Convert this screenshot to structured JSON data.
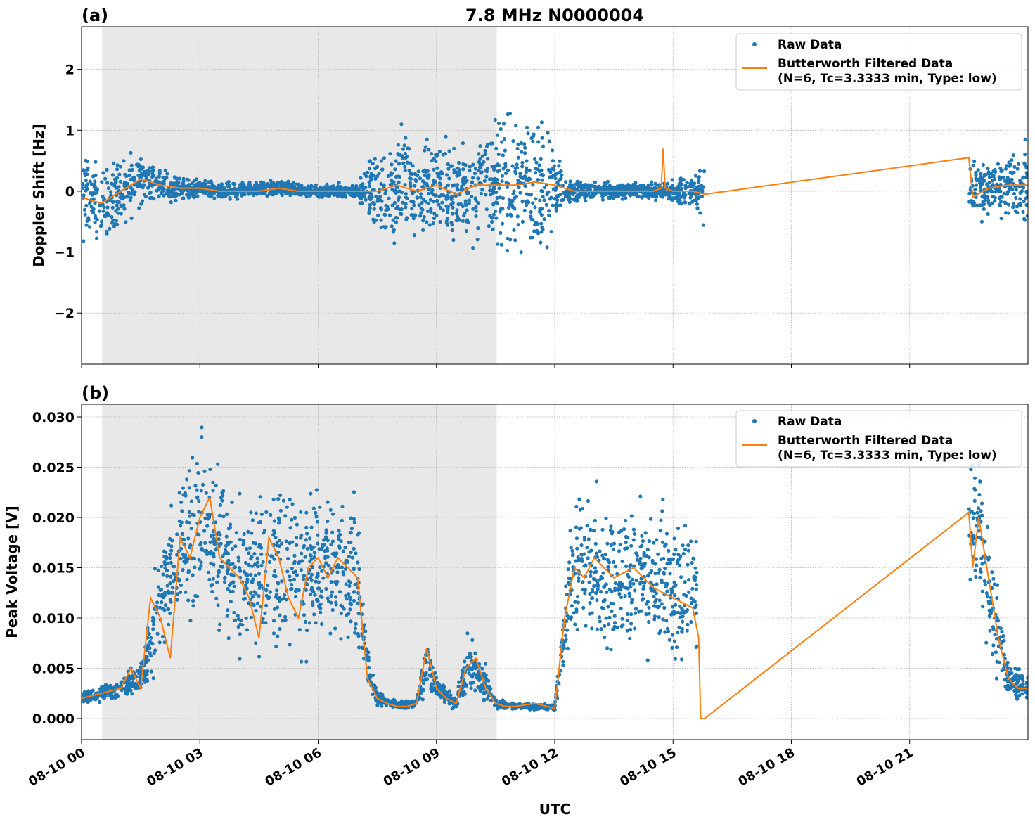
{
  "chart_data": [
    {
      "type": "scatter",
      "panel_label": "(a)",
      "title": "7.8 MHz N0000004",
      "xlabel": "",
      "ylabel": "Doppler Shift [Hz]",
      "xlim_hours": [
        0,
        24
      ],
      "ylim": [
        -2.84,
        2.7
      ],
      "yticks": [
        -2,
        -1,
        0,
        1,
        2
      ],
      "ytick_labels": [
        "−2",
        "−1",
        "0",
        "1",
        "2"
      ],
      "xticks_hours": [
        0,
        3,
        6,
        9,
        12,
        15,
        18,
        21
      ],
      "xtick_labels": [
        "08-10 00",
        "08-10 03",
        "08-10 06",
        "08-10 09",
        "08-10 12",
        "08-10 15",
        "08-10 18",
        "08-10 21"
      ],
      "show_xtick_labels": false,
      "grid": true,
      "night_shading_hours": [
        0.52,
        10.53
      ],
      "legend": {
        "placement": "top-right",
        "entries": [
          "Raw Data",
          "Butterworth Filtered Data",
          "(N=6, Tc=3.3333 min, Type: low)"
        ]
      },
      "colors": {
        "raw": "#1f77b4",
        "filtered": "#ff7f0e",
        "shade": "#e8e8e8"
      },
      "filtered_series": {
        "x": [
          0,
          0.5,
          1,
          1.5,
          2,
          2.5,
          3,
          3.5,
          4,
          4.5,
          5,
          5.5,
          6,
          6.5,
          7,
          7.5,
          8,
          8.5,
          9,
          9.5,
          10,
          10.5,
          11,
          11.5,
          12,
          12.25,
          12.5,
          13,
          13.5,
          14,
          14.5,
          14.7,
          14.75,
          14.8,
          15,
          15.5,
          15.8,
          22.5,
          22.6,
          23,
          23.5,
          24
        ],
        "y": [
          -0.1,
          -0.2,
          0.0,
          0.2,
          0.1,
          0.05,
          0.05,
          0.0,
          0.0,
          0.0,
          0.05,
          0.0,
          0.0,
          0.0,
          0.0,
          0.0,
          0.1,
          0.0,
          0.1,
          -0.05,
          0.1,
          0.1,
          0.1,
          0.15,
          0.1,
          0.05,
          0.0,
          0.0,
          0.0,
          0.0,
          0.0,
          0.05,
          0.7,
          0.05,
          0.0,
          0.0,
          -0.05,
          0.55,
          -0.1,
          0.05,
          0.1,
          0.1
        ]
      },
      "raw_envelope": {
        "segments": [
          {
            "x": [
              0,
              0.5,
              1,
              1.5,
              2,
              2.5,
              3,
              3.5,
              4,
              5,
              6,
              7,
              7.5,
              8,
              8.5,
              9,
              9.5,
              10,
              10.5,
              11,
              11.5,
              12,
              12.25,
              12.5,
              13,
              14,
              14.5,
              15,
              15.5,
              15.8
            ],
            "center": [
              -0.1,
              -0.2,
              0.0,
              0.2,
              0.1,
              0.05,
              0.05,
              0.0,
              0.0,
              0.05,
              0.0,
              0.0,
              0.0,
              0.1,
              0.0,
              0.1,
              -0.05,
              0.1,
              0.1,
              0.1,
              0.15,
              0.1,
              0.05,
              0.0,
              0.0,
              0.0,
              0.0,
              0.0,
              0.0,
              -0.05
            ],
            "halfwidth": [
              0.8,
              0.7,
              0.6,
              0.5,
              0.3,
              0.2,
              0.15,
              0.15,
              0.15,
              0.15,
              0.12,
              0.15,
              0.8,
              1.3,
              0.8,
              1.0,
              0.8,
              1.0,
              1.1,
              1.3,
              1.3,
              0.8,
              0.3,
              0.2,
              0.15,
              0.15,
              0.15,
              0.2,
              0.3,
              0.8
            ]
          },
          {
            "x": [
              22.5,
              23,
              23.5,
              24
            ],
            "center": [
              0.05,
              0.05,
              0.1,
              0.1
            ],
            "halfwidth": [
              0.6,
              0.5,
              0.6,
              0.8
            ]
          }
        ]
      }
    },
    {
      "type": "scatter",
      "panel_label": "(b)",
      "title": "",
      "xlabel": "UTC",
      "ylabel": "Peak Voltage [V]",
      "xlim_hours": [
        0,
        24
      ],
      "ylim": [
        -0.0021,
        0.03126
      ],
      "yticks": [
        0,
        0.005,
        0.01,
        0.015,
        0.02,
        0.025,
        0.03
      ],
      "ytick_labels": [
        "0.000",
        "0.005",
        "0.010",
        "0.015",
        "0.020",
        "0.025",
        "0.030"
      ],
      "xticks_hours": [
        0,
        3,
        6,
        9,
        12,
        15,
        18,
        21
      ],
      "xtick_labels": [
        "08-10 00",
        "08-10 03",
        "08-10 06",
        "08-10 09",
        "08-10 12",
        "08-10 15",
        "08-10 18",
        "08-10 21"
      ],
      "show_xtick_labels": true,
      "grid": true,
      "night_shading_hours": [
        0.52,
        10.53
      ],
      "legend": {
        "placement": "top-right",
        "entries": [
          "Raw Data",
          "Butterworth Filtered Data",
          "(N=6, Tc=3.3333 min, Type: low)"
        ]
      },
      "colors": {
        "raw": "#1f77b4",
        "filtered": "#ff7f0e",
        "shade": "#e8e8e8"
      },
      "filtered_series": {
        "x": [
          0,
          0.5,
          1,
          1.25,
          1.5,
          1.75,
          2,
          2.25,
          2.5,
          2.75,
          3,
          3.25,
          3.5,
          3.75,
          4,
          4.25,
          4.5,
          4.75,
          5,
          5.25,
          5.5,
          5.75,
          6,
          6.25,
          6.5,
          6.75,
          7,
          7.25,
          7.5,
          7.75,
          8,
          8.25,
          8.5,
          8.75,
          9,
          9.25,
          9.5,
          9.75,
          10,
          10.25,
          10.5,
          10.75,
          11,
          11.5,
          12,
          12.25,
          12.5,
          12.75,
          13,
          13.5,
          14,
          14.5,
          15,
          15.5,
          15.65,
          15.7,
          15.8,
          22.5,
          22.6,
          22.75,
          23,
          23.25,
          23.5,
          23.75,
          24
        ],
        "y": [
          0.002,
          0.0025,
          0.003,
          0.005,
          0.003,
          0.012,
          0.01,
          0.006,
          0.018,
          0.016,
          0.02,
          0.022,
          0.016,
          0.015,
          0.014,
          0.012,
          0.008,
          0.018,
          0.016,
          0.012,
          0.01,
          0.015,
          0.016,
          0.014,
          0.016,
          0.015,
          0.014,
          0.004,
          0.002,
          0.0015,
          0.0012,
          0.0012,
          0.0015,
          0.007,
          0.003,
          0.002,
          0.0015,
          0.005,
          0.006,
          0.003,
          0.0015,
          0.0012,
          0.0012,
          0.0015,
          0.001,
          0.01,
          0.015,
          0.014,
          0.016,
          0.014,
          0.015,
          0.013,
          0.012,
          0.011,
          0.008,
          0.0,
          0.0,
          0.0205,
          0.015,
          0.02,
          0.014,
          0.008,
          0.004,
          0.003,
          0.003
        ]
      },
      "raw_envelope": {
        "segments": [
          {
            "x": [
              0,
              1,
              1.5,
              2,
              2.5,
              3,
              4,
              5,
              6,
              7,
              7.25,
              7.5,
              8,
              8.5,
              8.75,
              9,
              9.5,
              9.75,
              10,
              10.5,
              11,
              12,
              12.25,
              12.5,
              13,
              14,
              15,
              15.6
            ],
            "center": [
              0.002,
              0.003,
              0.004,
              0.011,
              0.017,
              0.02,
              0.014,
              0.015,
              0.015,
              0.014,
              0.005,
              0.002,
              0.0013,
              0.0015,
              0.006,
              0.003,
              0.0015,
              0.005,
              0.005,
              0.0015,
              0.0012,
              0.0012,
              0.009,
              0.015,
              0.015,
              0.014,
              0.013,
              0.012
            ],
            "halfwidth": [
              0.0007,
              0.001,
              0.002,
              0.007,
              0.008,
              0.009,
              0.008,
              0.009,
              0.008,
              0.008,
              0.002,
              0.0008,
              0.0004,
              0.0006,
              0.0035,
              0.0015,
              0.0008,
              0.003,
              0.003,
              0.0006,
              0.0003,
              0.0004,
              0.004,
              0.008,
              0.008,
              0.008,
              0.008,
              0.007
            ]
          },
          {
            "x": [
              22.5,
              22.75,
              23,
              23.5,
              24
            ],
            "center": [
              0.018,
              0.019,
              0.013,
              0.004,
              0.003
            ],
            "halfwidth": [
              0.007,
              0.008,
              0.007,
              0.002,
              0.0015
            ]
          }
        ]
      }
    }
  ]
}
